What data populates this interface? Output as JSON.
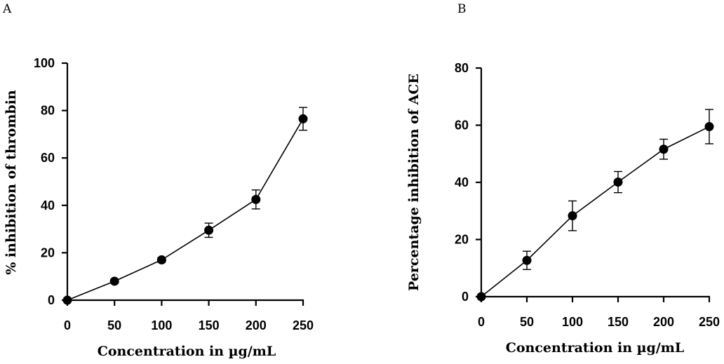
{
  "chart_data": [
    {
      "panel": "A",
      "type": "line",
      "title": "",
      "xlabel": "Concentration in µg/mL",
      "ylabel": "% inhibition of thrombin",
      "x": [
        0,
        50,
        100,
        150,
        200,
        250
      ],
      "xticks": [
        "0",
        "50",
        "100",
        "150",
        "200",
        "250"
      ],
      "xlim": [
        0,
        250
      ],
      "yticks": [
        "0",
        "20",
        "40",
        "60",
        "80",
        "100"
      ],
      "ylim": [
        0,
        100
      ],
      "series": [
        {
          "values": [
            0,
            8,
            17,
            29.5,
            42.5,
            76.5
          ],
          "error": [
            0,
            0.8,
            1,
            3,
            4,
            4.8
          ]
        }
      ],
      "grid": false,
      "legend": "none"
    },
    {
      "panel": "B",
      "type": "line",
      "title": "",
      "xlabel": "Concentration in µg/mL",
      "ylabel": "Percentage inhibition of ACE",
      "x": [
        0,
        50,
        100,
        150,
        200,
        250
      ],
      "xticks": [
        "0",
        "50",
        "100",
        "150",
        "200",
        "250"
      ],
      "xlim": [
        0,
        250
      ],
      "yticks": [
        "0",
        "20",
        "40",
        "60",
        "80"
      ],
      "ylim": [
        0,
        80
      ],
      "series": [
        {
          "values": [
            0,
            12.7,
            28.3,
            40.1,
            51.6,
            59.5
          ],
          "error": [
            0,
            3.2,
            5.2,
            3.7,
            3.5,
            6
          ]
        }
      ],
      "grid": false,
      "legend": "none"
    }
  ]
}
